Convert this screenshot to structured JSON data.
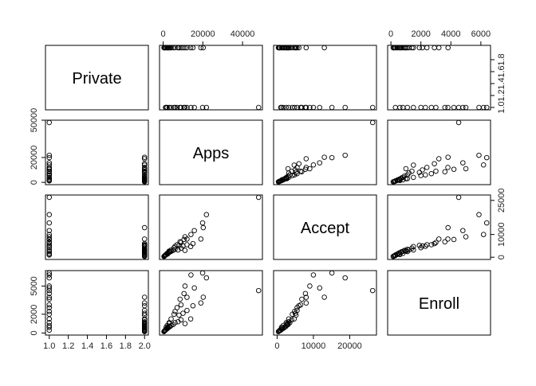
{
  "chart_data": {
    "type": "pairs",
    "color": "#000000",
    "variables": [
      {
        "name": "Private",
        "values": [
          1,
          1,
          1,
          1,
          1,
          1,
          1,
          1,
          1,
          1,
          1,
          1,
          1,
          1,
          1,
          1,
          1,
          1,
          2,
          2,
          2,
          2,
          2,
          2,
          2,
          2,
          2,
          2,
          2,
          2,
          2,
          2,
          2,
          2,
          2,
          2,
          2,
          2,
          2,
          2,
          2,
          2
        ],
        "lim": [
          0.96,
          2.04
        ],
        "xticks": [
          {
            "value": 1,
            "label": "1.0"
          },
          {
            "value": 1.2,
            "label": "1.2"
          },
          {
            "value": 1.4,
            "label": "1.4"
          },
          {
            "value": 1.6,
            "label": "1.6"
          },
          {
            "value": 1.8,
            "label": "1.8"
          },
          {
            "value": 2,
            "label": "2.0"
          }
        ],
        "yticks": [
          {
            "value": 1,
            "label": "1.0"
          },
          {
            "value": 1.2,
            "label": "1.2"
          },
          {
            "value": 1.4,
            "label": "1.4"
          },
          {
            "value": 1.6,
            "label": "1.6"
          },
          {
            "value": 1.8,
            "label": "1.8"
          }
        ]
      },
      {
        "name": "Apps",
        "values": [
          48094,
          21804,
          19873,
          14000,
          15712,
          12000,
          9000,
          7000,
          5500,
          4000,
          3000,
          2000,
          10500,
          8500,
          6000,
          1500,
          11000,
          1200,
          20192,
          19000,
          13865,
          15000,
          12000,
          9000,
          7500,
          6000,
          5000,
          4000,
          3000,
          2500,
          2000,
          1500,
          1000,
          800,
          600,
          400,
          2200,
          3500,
          11000,
          10000,
          8000,
          3000
        ],
        "lim": [
          -1840,
          50015
        ],
        "xticks": [
          0,
          20000,
          40000
        ],
        "yticks": [
          0,
          20000,
          50000
        ]
      },
      {
        "name": "Accept",
        "values": [
          26330,
          18744,
          15096,
          10000,
          11719,
          8000,
          6500,
          5500,
          4200,
          3200,
          2500,
          1700,
          7800,
          6800,
          4800,
          1200,
          9000,
          1000,
          13007,
          8000,
          4700,
          6000,
          5500,
          4000,
          3200,
          3500,
          3000,
          2600,
          2100,
          1900,
          1500,
          1200,
          800,
          650,
          500,
          350,
          1400,
          2400,
          3000,
          5000,
          5200,
          2700
        ],
        "lim": [
          -978,
          27380
        ],
        "xticks": [
          0,
          10000,
          20000
        ],
        "yticks": [
          0,
          10000,
          25000
        ]
      },
      {
        "name": "Enroll",
        "values": [
          4520,
          5874,
          6392,
          6180,
          4800,
          3800,
          3000,
          2700,
          2000,
          1500,
          1100,
          800,
          4200,
          3600,
          2300,
          600,
          5000,
          300,
          3810,
          3200,
          1500,
          2900,
          2400,
          1400,
          1200,
          1100,
          900,
          800,
          650,
          550,
          450,
          400,
          300,
          250,
          200,
          150,
          600,
          700,
          1000,
          2100,
          1900,
          1000
        ],
        "lim": [
          -219,
          6646
        ],
        "xticks": [
          0,
          2000,
          4000,
          6000
        ],
        "yticks": [
          0,
          2000,
          5000
        ]
      }
    ]
  }
}
